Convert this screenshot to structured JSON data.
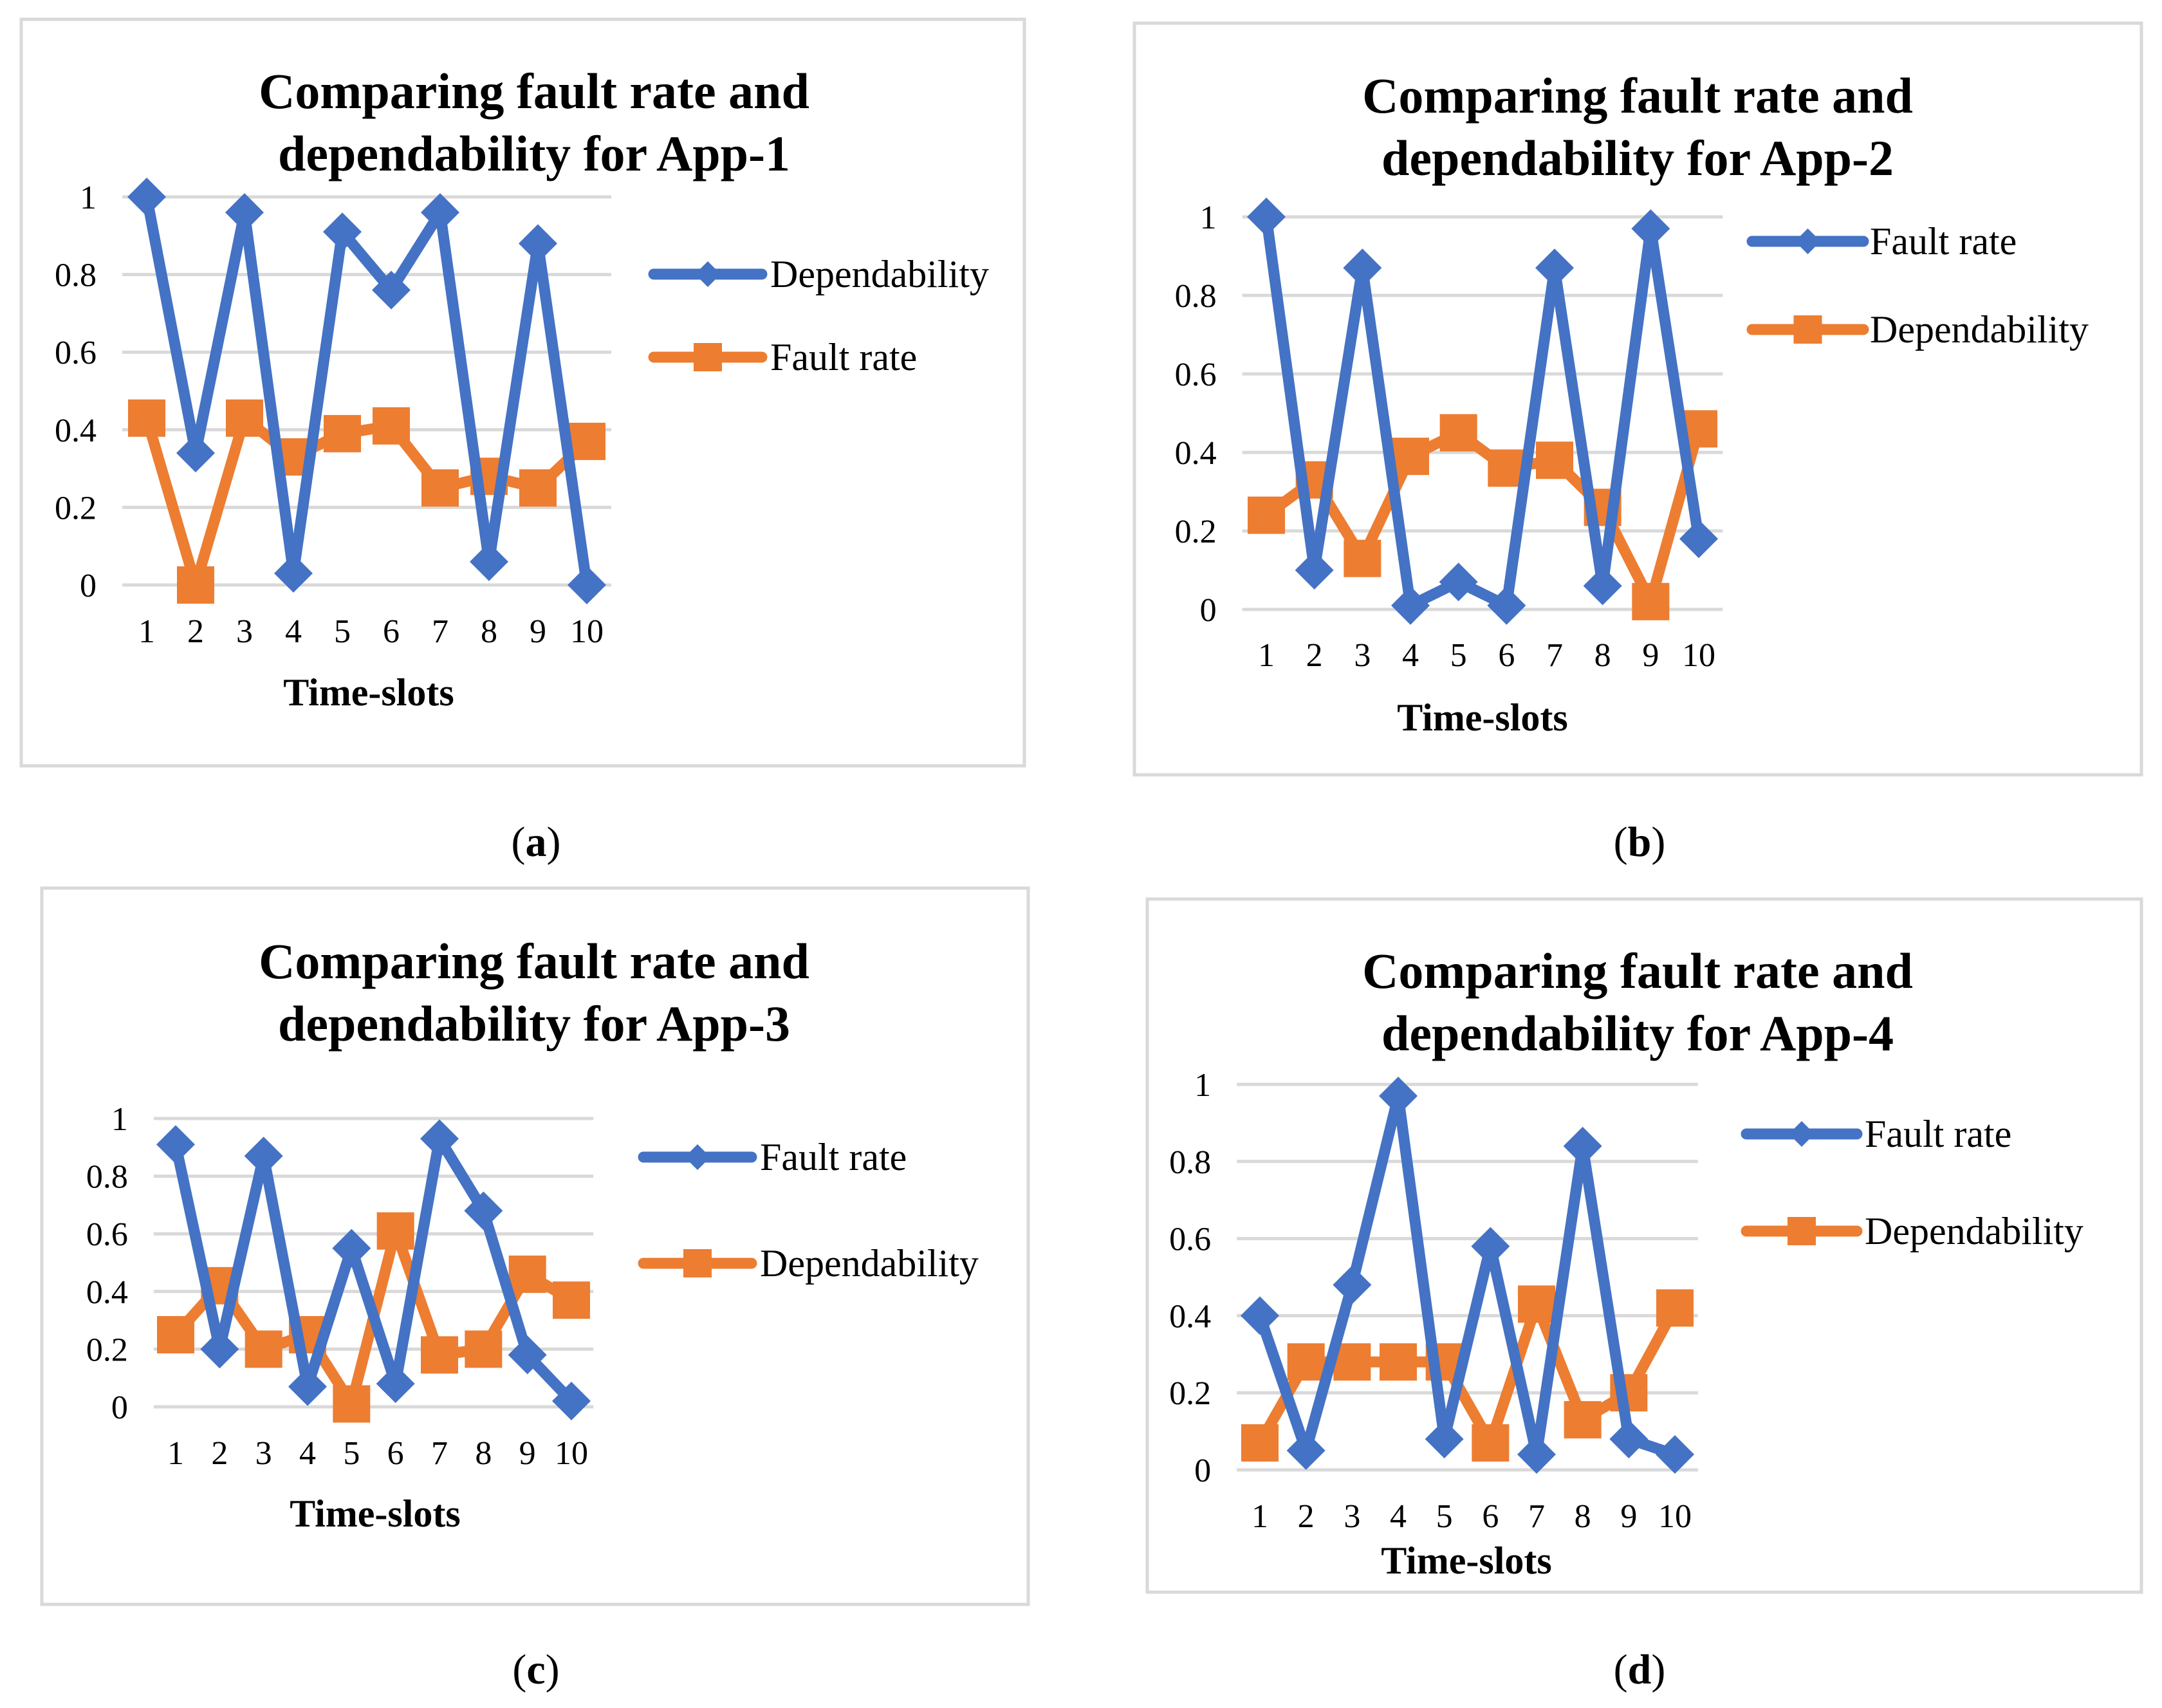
{
  "colors": {
    "blue": "#4472C4",
    "orange": "#ED7D31",
    "grid": "#D9D9D9",
    "frame": "#D9D9D9"
  },
  "chart_data": [
    {
      "type": "line",
      "panel": "(a)",
      "panel_letter": "a",
      "title_lines": [
        "Comparing fault rate and",
        "dependability for App-1"
      ],
      "xlabel": "Time-slots",
      "ylabel": "",
      "ylim": [
        0,
        1
      ],
      "yticks": [
        "0",
        "0.2",
        "0.4",
        "0.6",
        "0.8",
        "1"
      ],
      "categories": [
        "1",
        "2",
        "3",
        "4",
        "5",
        "6",
        "7",
        "8",
        "9",
        "10"
      ],
      "series": [
        {
          "name": "Dependability",
          "color": "#4472C4",
          "marker": "diamond",
          "values": [
            1.0,
            0.34,
            0.96,
            0.03,
            0.91,
            0.76,
            0.96,
            0.06,
            0.88,
            0.0
          ]
        },
        {
          "name": "Fault rate",
          "color": "#ED7D31",
          "marker": "square",
          "values": [
            0.43,
            0.0,
            0.43,
            0.33,
            0.39,
            0.41,
            0.25,
            0.28,
            0.25,
            0.37
          ]
        }
      ],
      "legend": "right"
    },
    {
      "type": "line",
      "panel": "(b)",
      "panel_letter": "b",
      "title_lines": [
        "Comparing fault rate and",
        "dependability for App-2"
      ],
      "xlabel": "Time-slots",
      "ylabel": "",
      "ylim": [
        0,
        1
      ],
      "yticks": [
        "0",
        "0.2",
        "0.4",
        "0.6",
        "0.8",
        "1"
      ],
      "categories": [
        "1",
        "2",
        "3",
        "4",
        "5",
        "6",
        "7",
        "8",
        "9",
        "10"
      ],
      "series": [
        {
          "name": "Fault rate",
          "color": "#4472C4",
          "marker": "diamond",
          "values": [
            1.0,
            0.1,
            0.87,
            0.01,
            0.07,
            0.01,
            0.87,
            0.06,
            0.97,
            0.18
          ]
        },
        {
          "name": "Dependability",
          "color": "#ED7D31",
          "marker": "square",
          "values": [
            0.24,
            0.33,
            0.13,
            0.39,
            0.45,
            0.36,
            0.38,
            0.26,
            0.02,
            0.46
          ]
        }
      ],
      "legend": "right"
    },
    {
      "type": "line",
      "panel": "(c)",
      "panel_letter": "c",
      "title_lines": [
        "Comparing fault rate and",
        "dependability for App-3"
      ],
      "xlabel": "Time-slots",
      "ylabel": "",
      "ylim": [
        0,
        1
      ],
      "yticks": [
        "0",
        "0.2",
        "0.4",
        "0.6",
        "0.8",
        "1"
      ],
      "categories": [
        "1",
        "2",
        "3",
        "4",
        "5",
        "6",
        "7",
        "8",
        "9",
        "10"
      ],
      "series": [
        {
          "name": "Fault rate",
          "color": "#4472C4",
          "marker": "diamond",
          "values": [
            0.91,
            0.2,
            0.87,
            0.07,
            0.55,
            0.08,
            0.93,
            0.68,
            0.18,
            0.02
          ]
        },
        {
          "name": "Dependability",
          "color": "#ED7D31",
          "marker": "square",
          "values": [
            0.25,
            0.42,
            0.2,
            0.25,
            0.01,
            0.61,
            0.18,
            0.2,
            0.46,
            0.37
          ]
        }
      ],
      "legend": "right"
    },
    {
      "type": "line",
      "panel": "(d)",
      "panel_letter": "d",
      "title_lines": [
        "Comparing fault rate and",
        "dependability for App-4"
      ],
      "xlabel": "Time-slots",
      "ylabel": "",
      "ylim": [
        0,
        1
      ],
      "yticks": [
        "0",
        "0.2",
        "0.4",
        "0.6",
        "0.8",
        "1"
      ],
      "categories": [
        "1",
        "2",
        "3",
        "4",
        "5",
        "6",
        "7",
        "8",
        "9",
        "10"
      ],
      "series": [
        {
          "name": "Fault rate",
          "color": "#4472C4",
          "marker": "diamond",
          "values": [
            0.4,
            0.05,
            0.48,
            0.97,
            0.08,
            0.58,
            0.04,
            0.84,
            0.08,
            0.04
          ]
        },
        {
          "name": "Dependability",
          "color": "#ED7D31",
          "marker": "square",
          "values": [
            0.07,
            0.28,
            0.28,
            0.28,
            0.28,
            0.07,
            0.43,
            0.13,
            0.2,
            0.42
          ]
        }
      ],
      "legend": "right"
    }
  ]
}
